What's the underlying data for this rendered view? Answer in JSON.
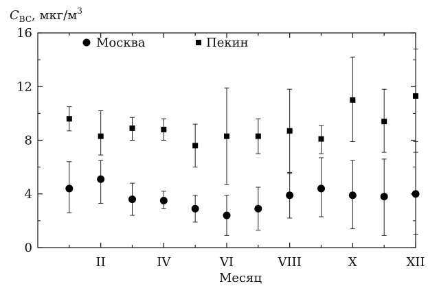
{
  "chart_data": {
    "type": "scatter",
    "title": "",
    "ylabel": {
      "symbol": "C",
      "subscript": "BC",
      "unit": ", мкг/м",
      "unit_sup": "3"
    },
    "xlabel": "Месяц",
    "xlim": [
      0,
      12
    ],
    "ylim": [
      0,
      16
    ],
    "yticks": [
      0,
      4,
      8,
      12,
      16
    ],
    "xticks": [
      {
        "x": 2,
        "label": "II"
      },
      {
        "x": 4,
        "label": "IV"
      },
      {
        "x": 6,
        "label": "VI"
      },
      {
        "x": 8,
        "label": "VIII"
      },
      {
        "x": 10,
        "label": "X"
      },
      {
        "x": 12,
        "label": "XII"
      }
    ],
    "grid": false,
    "legend_position": "top-left",
    "series": [
      {
        "name": "Москва",
        "marker": "circle",
        "color": "#000000",
        "points": [
          {
            "x": 1,
            "y": 4.4,
            "err_low": 2.6,
            "err_high": 6.4
          },
          {
            "x": 2,
            "y": 5.1,
            "err_low": 3.3,
            "err_high": 6.5
          },
          {
            "x": 3,
            "y": 3.6,
            "err_low": 2.4,
            "err_high": 4.8
          },
          {
            "x": 4,
            "y": 3.5,
            "err_low": 2.9,
            "err_high": 4.2
          },
          {
            "x": 5,
            "y": 2.9,
            "err_low": 1.9,
            "err_high": 3.9
          },
          {
            "x": 6,
            "y": 2.4,
            "err_low": 0.9,
            "err_high": 3.9
          },
          {
            "x": 7,
            "y": 2.9,
            "err_low": 1.3,
            "err_high": 4.5
          },
          {
            "x": 8,
            "y": 3.9,
            "err_low": 2.2,
            "err_high": 5.6
          },
          {
            "x": 9,
            "y": 4.4,
            "err_low": 2.3,
            "err_high": 6.7
          },
          {
            "x": 10,
            "y": 3.9,
            "err_low": 1.4,
            "err_high": 6.5
          },
          {
            "x": 11,
            "y": 3.8,
            "err_low": 0.9,
            "err_high": 6.6
          },
          {
            "x": 12,
            "y": 4.0,
            "err_low": 1.0,
            "err_high": 7.1
          }
        ]
      },
      {
        "name": "Пекин",
        "marker": "square",
        "color": "#000000",
        "points": [
          {
            "x": 1,
            "y": 9.6,
            "err_low": 8.7,
            "err_high": 10.5
          },
          {
            "x": 2,
            "y": 8.3,
            "err_low": 6.9,
            "err_high": 10.2
          },
          {
            "x": 3,
            "y": 8.9,
            "err_low": 8.0,
            "err_high": 9.7
          },
          {
            "x": 4,
            "y": 8.8,
            "err_low": 8.0,
            "err_high": 9.6
          },
          {
            "x": 5,
            "y": 7.6,
            "err_low": 6.0,
            "err_high": 9.2
          },
          {
            "x": 6,
            "y": 8.3,
            "err_low": 4.7,
            "err_high": 11.9
          },
          {
            "x": 7,
            "y": 8.3,
            "err_low": 7.0,
            "err_high": 9.6
          },
          {
            "x": 8,
            "y": 8.7,
            "err_low": 5.5,
            "err_high": 11.8
          },
          {
            "x": 9,
            "y": 8.1,
            "err_low": 7.0,
            "err_high": 9.1
          },
          {
            "x": 10,
            "y": 11.0,
            "err_low": 7.9,
            "err_high": 14.2
          },
          {
            "x": 11,
            "y": 9.4,
            "err_low": 7.1,
            "err_high": 11.8
          },
          {
            "x": 12,
            "y": 11.3,
            "err_low": 7.9,
            "err_high": 14.8
          }
        ]
      }
    ]
  }
}
